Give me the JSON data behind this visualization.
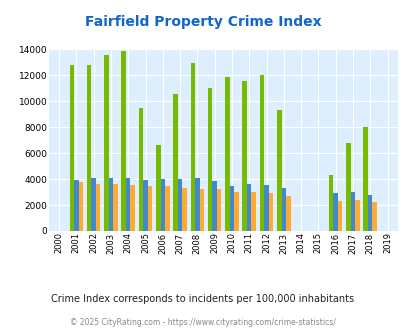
{
  "title": "Fairfield Property Crime Index",
  "years": [
    2000,
    2001,
    2002,
    2003,
    2004,
    2005,
    2006,
    2007,
    2008,
    2009,
    2010,
    2011,
    2012,
    2013,
    2014,
    2015,
    2016,
    2017,
    2018,
    2019
  ],
  "fairfield": [
    0,
    12800,
    12800,
    13600,
    13900,
    9450,
    6650,
    10600,
    12950,
    11000,
    11900,
    11550,
    12000,
    9300,
    0,
    0,
    4300,
    6800,
    8000,
    0
  ],
  "alabama": [
    0,
    3900,
    4050,
    4050,
    4050,
    3900,
    4000,
    4000,
    4050,
    3850,
    3500,
    3650,
    3550,
    3350,
    0,
    0,
    2950,
    2980,
    2750,
    0
  ],
  "national": [
    0,
    3750,
    3650,
    3650,
    3550,
    3500,
    3450,
    3300,
    3250,
    3250,
    3000,
    3000,
    2950,
    2700,
    0,
    0,
    2350,
    2400,
    2200,
    0
  ],
  "fairfield_color": "#77bb00",
  "alabama_color": "#4488cc",
  "national_color": "#ffaa33",
  "bg_color": "#ddeeff",
  "ylim": [
    0,
    14000
  ],
  "yticks": [
    0,
    2000,
    4000,
    6000,
    8000,
    10000,
    12000,
    14000
  ],
  "subtitle": "Crime Index corresponds to incidents per 100,000 inhabitants",
  "footer": "© 2025 CityRating.com - https://www.cityrating.com/crime-statistics/",
  "subtitle_color": "#222222",
  "footer_color": "#888888",
  "title_color": "#1166cc"
}
